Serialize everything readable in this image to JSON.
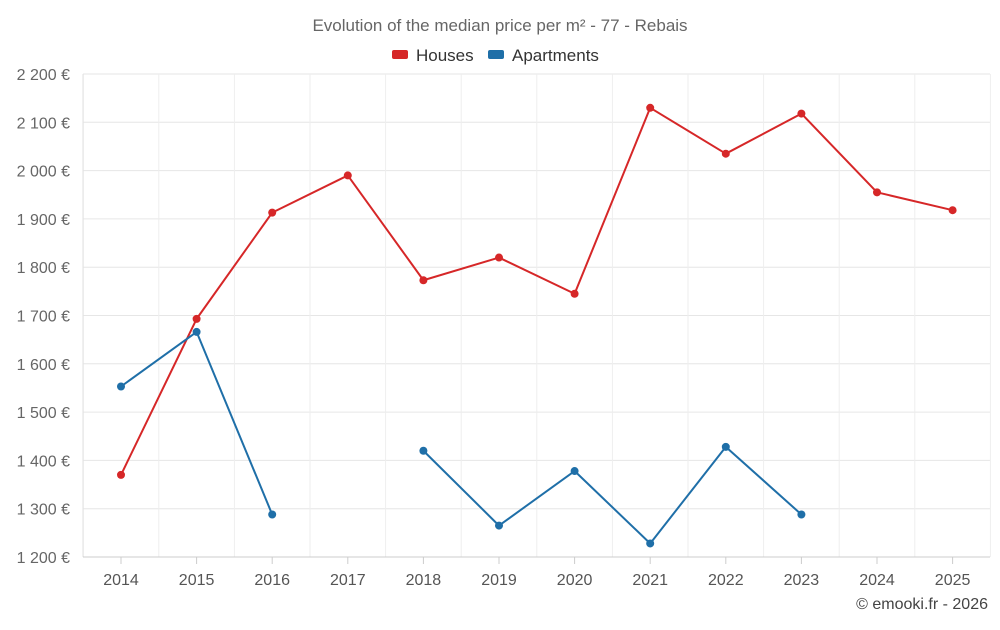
{
  "chart_data": {
    "type": "line",
    "title": "Evolution of the median price per m² - 77 - Rebais",
    "xlabel": "",
    "ylabel": "",
    "categories": [
      "2014",
      "2015",
      "2016",
      "2017",
      "2018",
      "2019",
      "2020",
      "2021",
      "2022",
      "2023",
      "2024",
      "2025"
    ],
    "ylim": [
      1200,
      2200
    ],
    "yticks": [
      1200,
      1300,
      1400,
      1500,
      1600,
      1700,
      1800,
      1900,
      2000,
      2100,
      2200
    ],
    "ytick_labels": [
      "1 200 €",
      "1 300 €",
      "1 400 €",
      "1 500 €",
      "1 600 €",
      "1 700 €",
      "1 800 €",
      "1 900 €",
      "2 000 €",
      "2 100 €",
      "2 200 €"
    ],
    "grid": true,
    "legend_position": "top-center",
    "series": [
      {
        "name": "Houses",
        "color": "#d62728",
        "values": [
          1370,
          1693,
          1913,
          1990,
          1773,
          1820,
          1745,
          2130,
          2035,
          2118,
          1955,
          1918
        ]
      },
      {
        "name": "Apartments",
        "color": "#1f6fa8",
        "values": [
          1553,
          1666,
          1288,
          null,
          1420,
          1265,
          1378,
          1228,
          1428,
          1288,
          null,
          null
        ]
      }
    ],
    "credit": "© emooki.fr - 2026"
  }
}
